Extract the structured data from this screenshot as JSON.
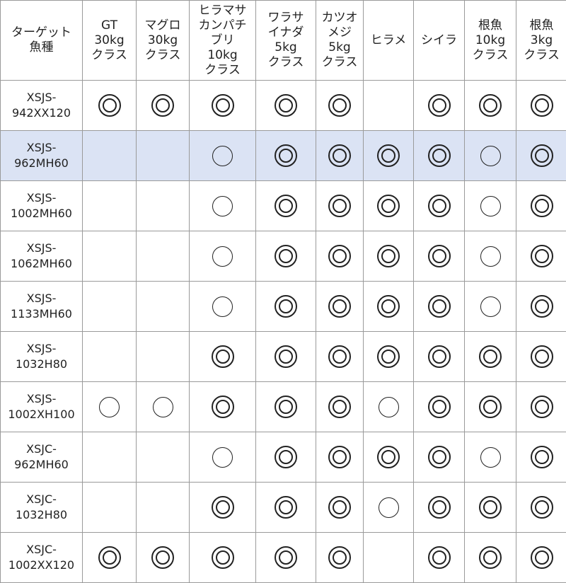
{
  "header": {
    "corner": "ターゲット\n魚種",
    "columns": [
      "GT\n30kg\nクラス",
      "マグロ\n30kg\nクラス",
      "ヒラマサ\nカンパチ\nブリ\n10kg\nクラス",
      "ワラサ\nイナダ\n5kg\nクラス",
      "カツオ\nメジ\n5kg\nクラス",
      "ヒラメ",
      "シイラ",
      "根魚\n10kg\nクラス",
      "根魚\n3kg\nクラス"
    ]
  },
  "legend_symbols": {
    "double": "◎",
    "single": "○",
    "none": ""
  },
  "highlight_color": "#dbe3f4",
  "rows": [
    {
      "model": "XSJS-\n942XX120",
      "marks": [
        "double",
        "double",
        "double",
        "double",
        "double",
        "none",
        "double",
        "double",
        "double"
      ]
    },
    {
      "model": "XSJS-\n962MH60",
      "highlighted": true,
      "marks": [
        "none",
        "none",
        "single",
        "double",
        "double",
        "double",
        "double",
        "single",
        "double"
      ]
    },
    {
      "model": "XSJS-\n1002MH60",
      "marks": [
        "none",
        "none",
        "single",
        "double",
        "double",
        "double",
        "double",
        "single",
        "double"
      ]
    },
    {
      "model": "XSJS-\n1062MH60",
      "marks": [
        "none",
        "none",
        "single",
        "double",
        "double",
        "double",
        "double",
        "single",
        "double"
      ]
    },
    {
      "model": "XSJS-\n1133MH60",
      "marks": [
        "none",
        "none",
        "single",
        "double",
        "double",
        "double",
        "double",
        "single",
        "double"
      ]
    },
    {
      "model": "XSJS-\n1032H80",
      "marks": [
        "none",
        "none",
        "double",
        "double",
        "double",
        "double",
        "double",
        "double",
        "double"
      ]
    },
    {
      "model": "XSJS-\n1002XH100",
      "marks": [
        "single",
        "single",
        "double",
        "double",
        "double",
        "single",
        "double",
        "double",
        "double"
      ]
    },
    {
      "model": "XSJC-\n962MH60",
      "marks": [
        "none",
        "none",
        "single",
        "double",
        "double",
        "double",
        "double",
        "single",
        "double"
      ]
    },
    {
      "model": "XSJC-\n1032H80",
      "marks": [
        "none",
        "none",
        "double",
        "double",
        "double",
        "single",
        "double",
        "double",
        "double"
      ]
    },
    {
      "model": "XSJC-\n1002XX120",
      "marks": [
        "double",
        "double",
        "double",
        "double",
        "double",
        "none",
        "double",
        "double",
        "double"
      ]
    }
  ]
}
